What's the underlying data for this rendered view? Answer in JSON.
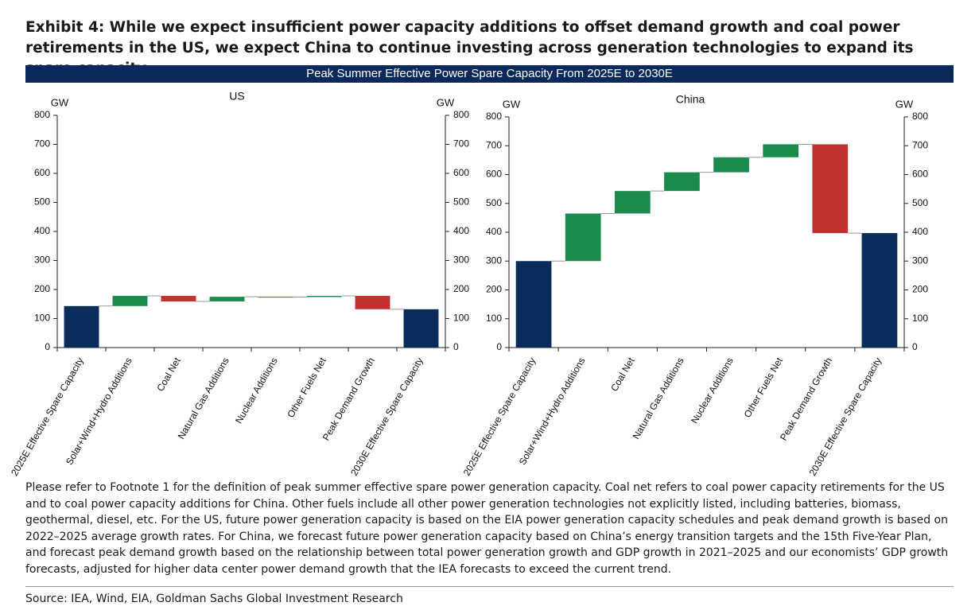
{
  "title": "Exhibit 4: While we expect insufficient power capacity additions to offset demand growth and coal power retirements in the US, we expect China to continue investing across generation technologies to expand its spare capacity",
  "subtitle": "Peak Summer Effective Power Spare Capacity From 2025E to 2030E",
  "chart_data": [
    {
      "type": "waterfall",
      "title": "US",
      "categories": [
        "2025E Effective Spare Capacity",
        "Solar+Wind+Hydro Additions",
        "Coal Net",
        "Natural Gas Additions",
        "Nuclear Additions",
        "Other Fuels Net",
        "Peak Demand Growth",
        "2030E Effective Spare Capacity"
      ],
      "values": [
        143,
        35,
        -19,
        16,
        -1,
        4,
        -46,
        132
      ],
      "measure": [
        "absolute",
        "relative",
        "relative",
        "relative",
        "relative",
        "relative",
        "relative",
        "total"
      ],
      "total_color": "#0b2d5b",
      "increase_color": "#1b8a4c",
      "decrease_color": "#c0312f",
      "y_label": "GW",
      "y2_label": "GW",
      "ylim": [
        0,
        800
      ],
      "yticks": [
        0,
        100,
        200,
        300,
        400,
        500,
        600,
        700,
        800
      ],
      "y2lim": [
        0,
        800
      ],
      "y2ticks": [
        0,
        100,
        200,
        300,
        400,
        500,
        600,
        700,
        800
      ]
    },
    {
      "type": "waterfall",
      "title": "China",
      "categories": [
        "2025E Effective Spare Capacity",
        "Solar+Wind+Hydro Additions",
        "Coal Net",
        "Natural Gas Additions",
        "Nuclear Additions",
        "Other Fuels Net",
        "Peak Demand Growth",
        "2030E Effective Spare Capacity"
      ],
      "values": [
        300,
        165,
        78,
        65,
        52,
        45,
        -308,
        397
      ],
      "measure": [
        "absolute",
        "relative",
        "relative",
        "relative",
        "relative",
        "relative",
        "relative",
        "total"
      ],
      "total_color": "#0b2d5b",
      "increase_color": "#1b8a4c",
      "decrease_color": "#c0312f",
      "y_label": "GW",
      "y2_label": "GW",
      "ylim": [
        0,
        800
      ],
      "yticks": [
        0,
        100,
        200,
        300,
        400,
        500,
        600,
        700,
        800
      ],
      "y2lim": [
        0,
        800
      ],
      "y2ticks": [
        0,
        100,
        200,
        300,
        400,
        500,
        600,
        700,
        800
      ]
    }
  ],
  "note": "Please refer to Footnote 1 for the definition of peak summer effective spare power generation capacity. Coal net refers to coal power capacity retirements for the US and to coal power capacity additions for China. Other fuels include all other power generation technologies not explicitly listed, including batteries, biomass, geothermal, diesel, etc. For the US, future power generation capacity is based on the EIA power generation capacity schedules and peak demand growth is based on 2022–2025 average growth rates. For China, we forecast future power generation capacity based on China’s energy transition targets and the 15th Five-Year Plan, and forecast peak demand growth based on the relationship between total power generation growth and GDP growth in 2021–2025 and our economists’ GDP growth forecasts, adjusted for higher data center power demand growth that the IEA forecasts to exceed the current trend.",
  "source": "Source: IEA, Wind, EIA, Goldman Sachs Global Investment Research"
}
